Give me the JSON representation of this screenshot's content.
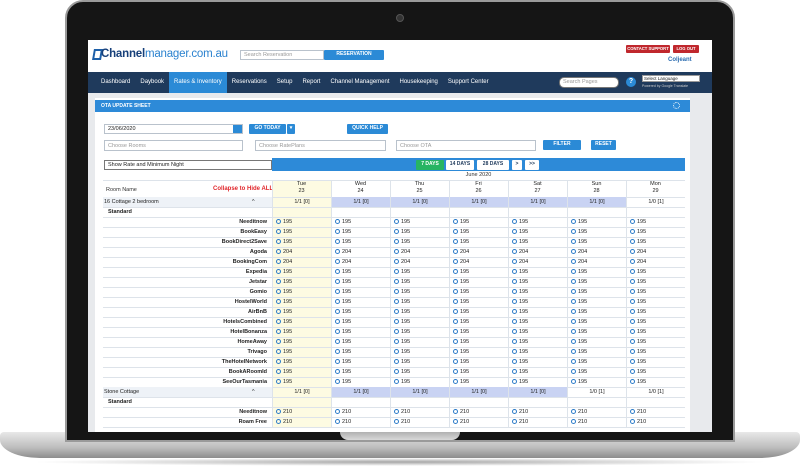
{
  "header": {
    "logo_part1": "Channel",
    "logo_part2": "manager.com.au",
    "search_placeholder": "Search Reservation",
    "reservation_button": "RESERVATION",
    "contact_support": "CONTACT SUPPORT",
    "logout": "LOG OUT",
    "user": "Coljeant"
  },
  "nav": {
    "items": [
      "Dashboard",
      "Daybook",
      "Rates & Inventory",
      "Reservations",
      "Setup",
      "Report",
      "Channel Management",
      "Housekeeping",
      "Support Center"
    ],
    "search_placeholder": "Search Pages",
    "language": "Select Language",
    "powered_by": "Powered by Google Translate"
  },
  "panel": {
    "title": "OTA UPDATE SHEET",
    "date": "23/06/2020",
    "go_today": "GO TODAY",
    "quick_help": "QUICK HELP",
    "rooms_placeholder": "Choose Rooms",
    "rateplans_placeholder": "Choose RatePlans",
    "ota_placeholder": "Choose OTA",
    "filter": "FILTER",
    "reset": "RESET",
    "view_select": "Show Rate and Minimum Night",
    "ranges": [
      "7 DAYS",
      "14 DAYS",
      "28 DAYS"
    ],
    "paging": [
      ">",
      ">>"
    ]
  },
  "grid": {
    "month": "June 2020",
    "room_name_header": "Room Name",
    "collapse_all": "Collapse to Hide ALL",
    "days": [
      {
        "weekday": "Tue",
        "date": 23
      },
      {
        "weekday": "Wed",
        "date": 24
      },
      {
        "weekday": "Thu",
        "date": 25
      },
      {
        "weekday": "Fri",
        "date": 26
      },
      {
        "weekday": "Sat",
        "date": 27
      },
      {
        "weekday": "Sun",
        "date": 28
      },
      {
        "weekday": "Mon",
        "date": 29
      }
    ],
    "rooms": [
      {
        "name": "16 Cottage 2 bedroom",
        "availability": [
          "1/1 [0]",
          "1/1 [0]",
          "1/1 [0]",
          "1/1 [0]",
          "1/1 [0]",
          "1/1 [0]",
          "1/0 [1]"
        ],
        "rate_plan": "Standard",
        "channels": [
          {
            "name": "Needitnow",
            "rates": [
              195,
              195,
              195,
              195,
              195,
              195,
              195
            ]
          },
          {
            "name": "BookEasy",
            "rates": [
              195,
              195,
              195,
              195,
              195,
              195,
              195
            ]
          },
          {
            "name": "BookDirect2Save",
            "rates": [
              195,
              195,
              195,
              195,
              195,
              195,
              195
            ]
          },
          {
            "name": "Agoda",
            "rates": [
              204,
              204,
              204,
              204,
              204,
              204,
              204
            ]
          },
          {
            "name": "BookingCom",
            "rates": [
              204,
              204,
              204,
              204,
              204,
              204,
              204
            ]
          },
          {
            "name": "Expedia",
            "rates": [
              195,
              195,
              195,
              195,
              195,
              195,
              195
            ]
          },
          {
            "name": "Jetstar",
            "rates": [
              195,
              195,
              195,
              195,
              195,
              195,
              195
            ]
          },
          {
            "name": "Gomio",
            "rates": [
              195,
              195,
              195,
              195,
              195,
              195,
              195
            ]
          },
          {
            "name": "HostelWorld",
            "rates": [
              195,
              195,
              195,
              195,
              195,
              195,
              195
            ]
          },
          {
            "name": "AirBnB",
            "rates": [
              195,
              195,
              195,
              195,
              195,
              195,
              195
            ]
          },
          {
            "name": "HotelsCombined",
            "rates": [
              195,
              195,
              195,
              195,
              195,
              195,
              195
            ]
          },
          {
            "name": "HotelBonanza",
            "rates": [
              195,
              195,
              195,
              195,
              195,
              195,
              195
            ]
          },
          {
            "name": "HomeAway",
            "rates": [
              195,
              195,
              195,
              195,
              195,
              195,
              195
            ]
          },
          {
            "name": "Trivago",
            "rates": [
              195,
              195,
              195,
              195,
              195,
              195,
              195
            ]
          },
          {
            "name": "TheHotelNetwork",
            "rates": [
              195,
              195,
              195,
              195,
              195,
              195,
              195
            ]
          },
          {
            "name": "BookARoomId",
            "rates": [
              195,
              195,
              195,
              195,
              195,
              195,
              195
            ]
          },
          {
            "name": "SeeOurTasmania",
            "rates": [
              195,
              195,
              195,
              195,
              195,
              195,
              195
            ]
          }
        ]
      },
      {
        "name": "Stone Cottage",
        "availability": [
          "1/1 [0]",
          "1/1 [0]",
          "1/1 [0]",
          "1/1 [0]",
          "1/1 [0]",
          "1/0 [1]",
          "1/0 [1]"
        ],
        "rate_plan": "Standard",
        "channels": [
          {
            "name": "Needitnow",
            "rates": [
              210,
              210,
              210,
              210,
              210,
              210,
              210
            ]
          },
          {
            "name": "Roam Free",
            "rates": [
              210,
              210,
              210,
              210,
              210,
              210,
              210
            ]
          }
        ]
      }
    ]
  }
}
